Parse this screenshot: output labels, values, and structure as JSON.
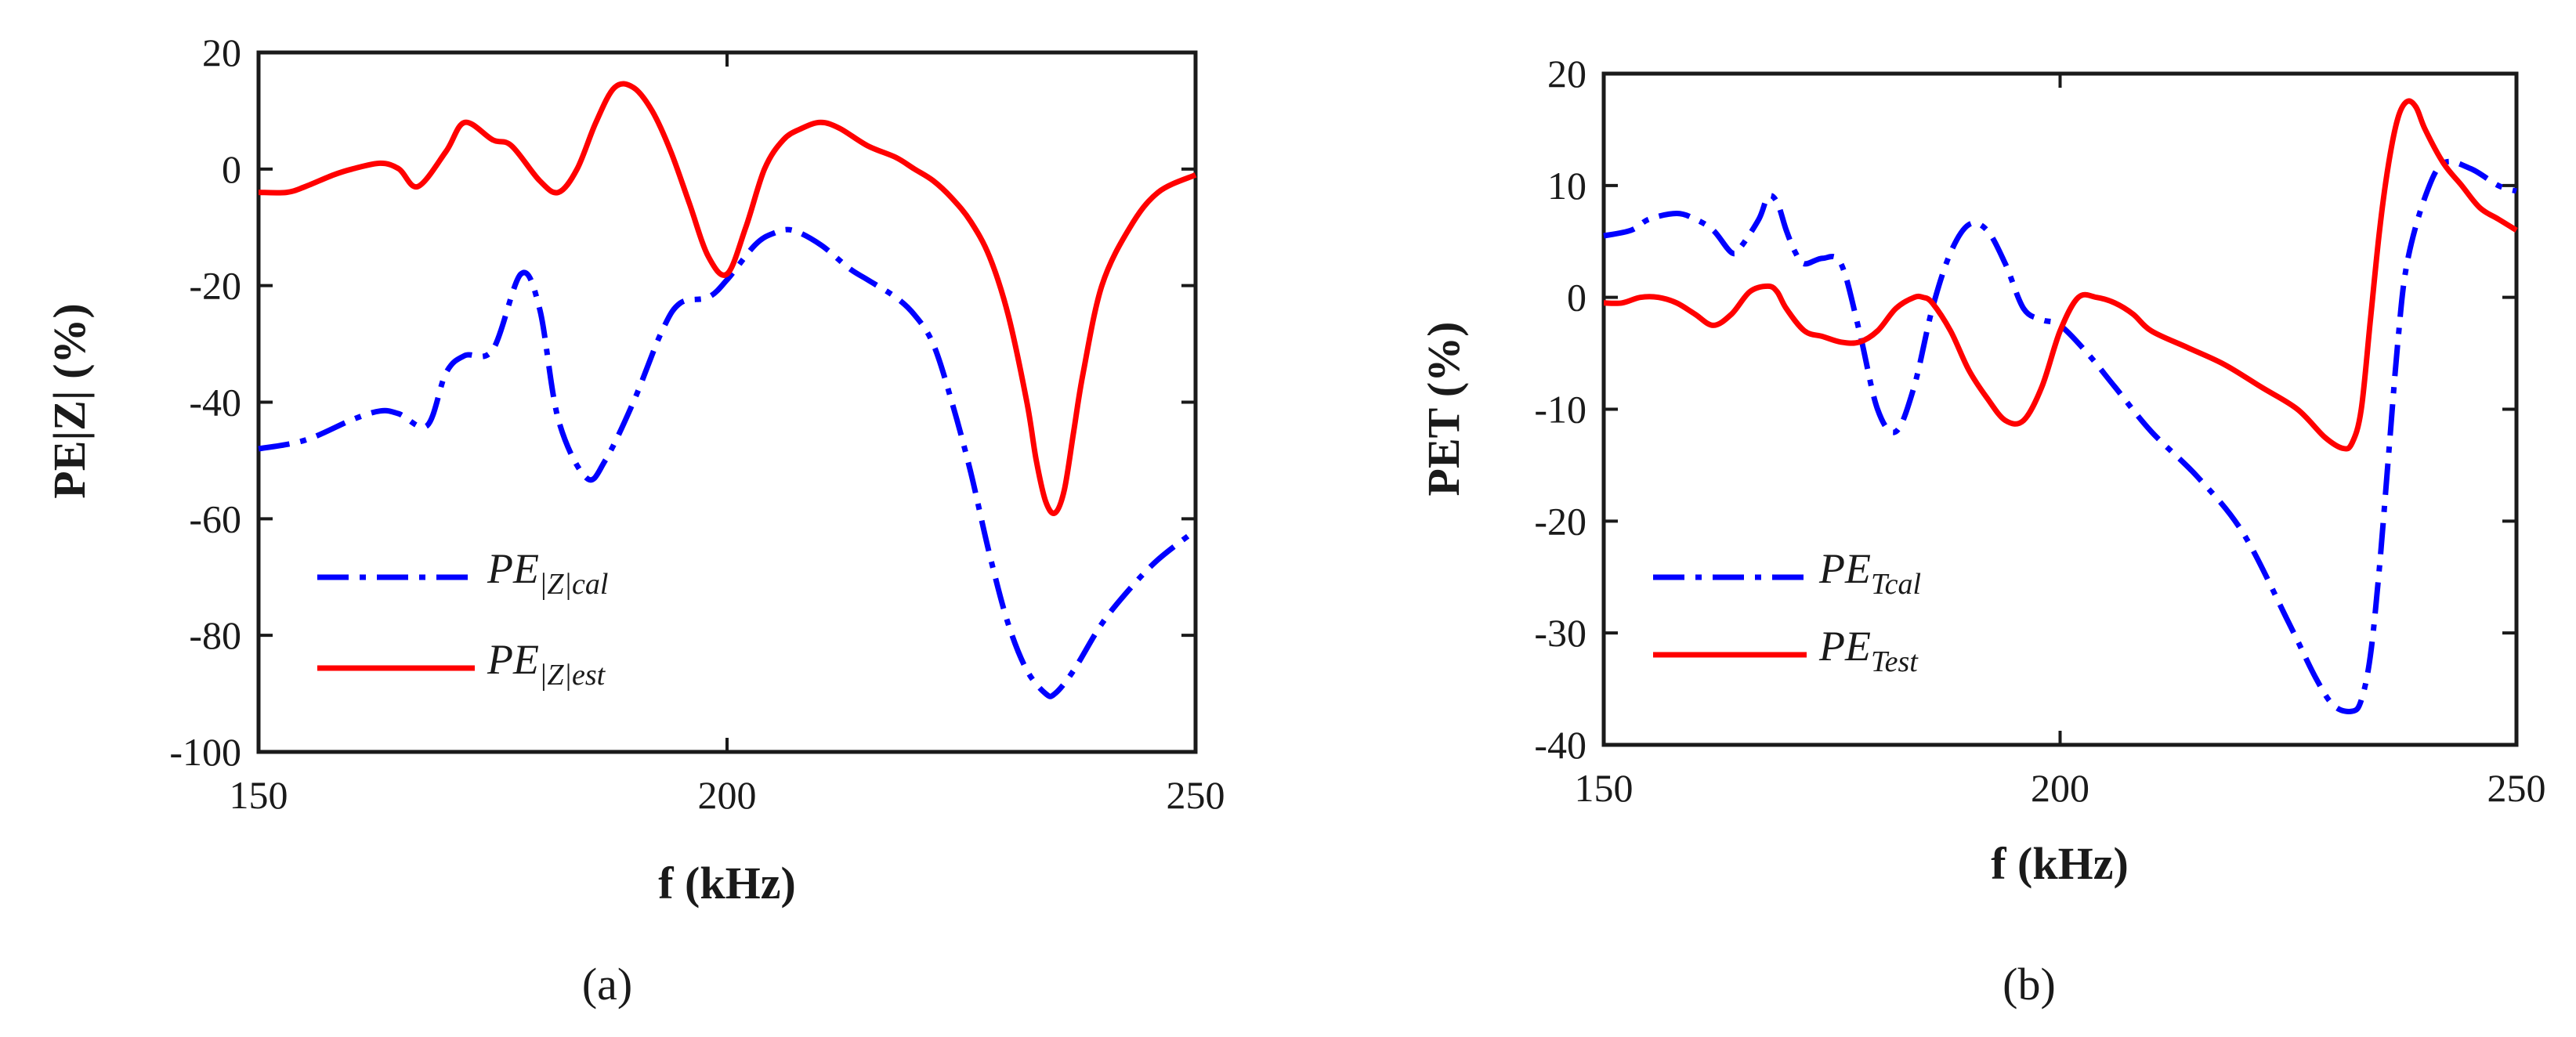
{
  "chart_data": [
    {
      "type": "line",
      "panel_label": "(a)",
      "xlabel": "f (kHz)",
      "ylabel": "PE|Z| (%)",
      "xlim": [
        150,
        250
      ],
      "ylim": [
        -100,
        20
      ],
      "xticks": [
        150,
        200,
        250
      ],
      "yticks": [
        20,
        0,
        -20,
        -40,
        -60,
        -80,
        -100
      ],
      "legend_position": "bottom-left",
      "series": [
        {
          "name": "PE|Z|cal",
          "legend_main": "PE",
          "legend_sub": "|Z|cal",
          "color": "#0000ff",
          "style": "dash-dot",
          "x": [
            150,
            155,
            160,
            163,
            165,
            168,
            170,
            172,
            175,
            178,
            180,
            182,
            185,
            187,
            190,
            193,
            195,
            198,
            200,
            203,
            205,
            207,
            210,
            213,
            215,
            218,
            220,
            222,
            224,
            226,
            228,
            230,
            232,
            234,
            235,
            237,
            240,
            243,
            246,
            250
          ],
          "y": [
            -48,
            -46.5,
            -43,
            -41.5,
            -42,
            -44,
            -35,
            -32,
            -31,
            -18,
            -24,
            -43,
            -53,
            -50,
            -40,
            -28,
            -23,
            -22,
            -19,
            -13,
            -11,
            -10.5,
            -13,
            -17,
            -19,
            -22,
            -25,
            -30,
            -40,
            -52,
            -66,
            -78,
            -86,
            -90,
            -90,
            -86,
            -78,
            -72,
            -67,
            -62
          ]
        },
        {
          "name": "PE|Z|est",
          "legend_main": "PE",
          "legend_sub": "|Z|est",
          "color": "#ff0000",
          "style": "solid",
          "x": [
            150,
            153,
            155,
            158,
            160,
            163,
            165,
            167,
            170,
            172,
            175,
            177,
            180,
            182,
            184,
            186,
            188,
            190,
            192,
            194,
            196,
            198,
            200,
            202,
            204,
            206,
            208,
            210,
            212,
            215,
            218,
            220,
            222,
            224,
            226,
            228,
            230,
            232,
            233,
            234,
            235,
            236,
            237,
            238,
            240,
            243,
            246,
            250
          ],
          "y": [
            -4,
            -4,
            -3,
            -1,
            0,
            1,
            0,
            -3,
            3,
            8,
            5,
            4,
            -2,
            -4,
            0,
            8,
            14,
            14,
            10,
            3,
            -6,
            -15,
            -18,
            -10,
            0,
            5,
            7,
            8,
            7,
            4,
            2,
            0,
            -2,
            -5,
            -9,
            -15,
            -25,
            -40,
            -50,
            -57,
            -59,
            -55,
            -45,
            -35,
            -20,
            -10,
            -4,
            -1
          ]
        }
      ]
    },
    {
      "type": "line",
      "panel_label": "(b)",
      "xlabel": "f (kHz)",
      "ylabel": "PET (%)",
      "xlim": [
        150,
        250
      ],
      "ylim": [
        -40,
        20
      ],
      "xticks": [
        150,
        200,
        250
      ],
      "yticks": [
        20,
        10,
        0,
        -10,
        -20,
        -30,
        -40
      ],
      "legend_position": "bottom-left",
      "series": [
        {
          "name": "PETcal",
          "legend_main": "PE",
          "legend_sub": "Tcal",
          "color": "#0000ff",
          "style": "dash-dot",
          "x": [
            150,
            153,
            155,
            158,
            160,
            162,
            164,
            165,
            167,
            168,
            169,
            170,
            171,
            172,
            174,
            176,
            178,
            180,
            182,
            184,
            186,
            188,
            190,
            192,
            194,
            196,
            198,
            200,
            203,
            206,
            210,
            215,
            220,
            225,
            228,
            230,
            232,
            233,
            234,
            235,
            236,
            237,
            238,
            240,
            242,
            245,
            248,
            250
          ],
          "y": [
            5.5,
            6,
            7,
            7.5,
            7,
            6,
            4,
            4.5,
            7,
            9,
            8.5,
            6,
            4,
            3,
            3.5,
            3,
            -3,
            -10,
            -12,
            -8,
            -1,
            4,
            6.5,
            6,
            3,
            -1,
            -2,
            -2.5,
            -5,
            -8,
            -12,
            -16,
            -21,
            -29,
            -34,
            -36.5,
            -37,
            -36,
            -32,
            -24,
            -14,
            -4,
            3,
            9,
            12,
            11.5,
            10,
            9.5
          ]
        },
        {
          "name": "PETest",
          "legend_main": "PE",
          "legend_sub": "Test",
          "color": "#ff0000",
          "style": "solid",
          "x": [
            150,
            152,
            154,
            156,
            158,
            160,
            162,
            164,
            166,
            168,
            169,
            170,
            172,
            174,
            176,
            178,
            180,
            182,
            184,
            185,
            186,
            188,
            190,
            192,
            194,
            196,
            198,
            200,
            202,
            204,
            206,
            208,
            210,
            214,
            218,
            222,
            226,
            229,
            231,
            232,
            233,
            234,
            235,
            236,
            237,
            238,
            239,
            240,
            242,
            244,
            246,
            248,
            250
          ],
          "y": [
            -0.5,
            -0.5,
            0,
            0,
            -0.5,
            -1.5,
            -2.5,
            -1.5,
            0.5,
            1,
            0.5,
            -1,
            -3,
            -3.5,
            -4,
            -4,
            -3,
            -1,
            0,
            0,
            -0.5,
            -3,
            -6.5,
            -9,
            -11,
            -11,
            -8,
            -3,
            0,
            0,
            -0.5,
            -1.5,
            -3,
            -4.5,
            -6,
            -8,
            -10,
            -12.5,
            -13.5,
            -13,
            -10,
            -2,
            6,
            12,
            16,
            17.5,
            17,
            15,
            12,
            10,
            8,
            7,
            6
          ]
        }
      ]
    }
  ]
}
